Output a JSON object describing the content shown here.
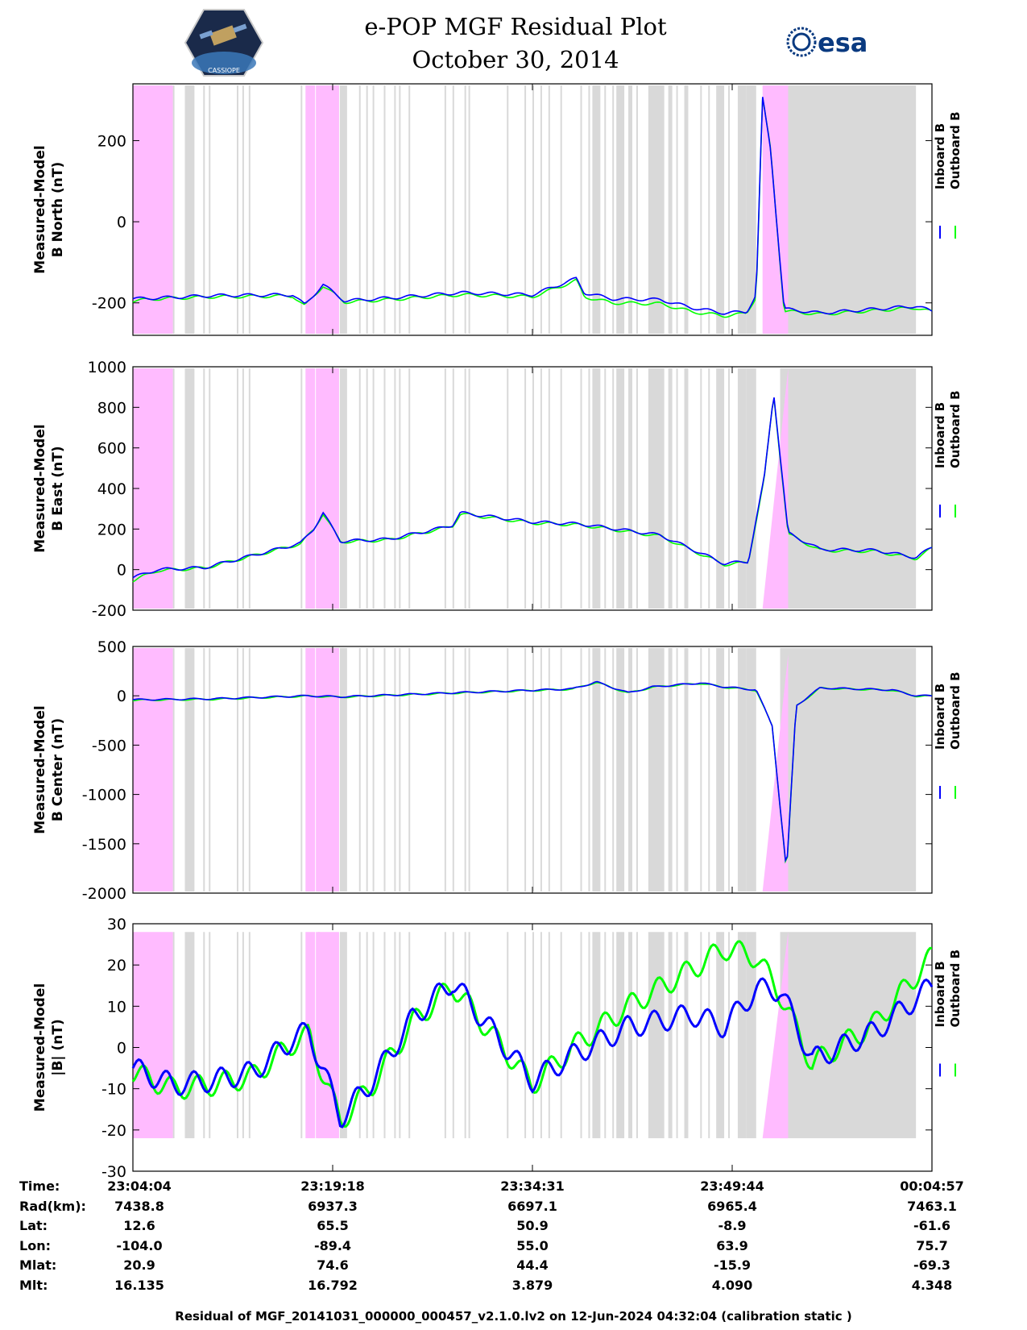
{
  "header": {
    "title_line1": "e-POP MGF Residual Plot",
    "title_line2": "October 30, 2014",
    "logo_left": "CASSIOPE",
    "logo_right": "esa"
  },
  "colors": {
    "inboard": "#0000ff",
    "outboard": "#00ff00",
    "grey_band": "#d9d9d9",
    "pink_band": "#ffbbff"
  },
  "chart_data": [
    {
      "type": "line",
      "id": "north",
      "ylabel_lines": [
        "Measured-Model",
        "B North (nT)"
      ],
      "ylim": [
        -280,
        340
      ],
      "yticks": [
        -200,
        0,
        200
      ],
      "legend": [
        "Inboard B",
        "Outboard B"
      ],
      "x": [
        0,
        0.03,
        0.1,
        0.2,
        0.215,
        0.238,
        0.265,
        0.32,
        0.41,
        0.5,
        0.555,
        0.565,
        0.6,
        0.66,
        0.7,
        0.74,
        0.768,
        0.78,
        0.788,
        0.798,
        0.815,
        0.86,
        0.98,
        1.0
      ],
      "series": [
        {
          "name": "Inboard B",
          "values": [
            -190,
            -188,
            -182,
            -180,
            -205,
            -155,
            -195,
            -188,
            -175,
            -180,
            -140,
            -175,
            -190,
            -192,
            -212,
            -225,
            -222,
            -180,
            305,
            180,
            -215,
            -225,
            -208,
            -220
          ]
        },
        {
          "name": "Outboard B",
          "values": [
            -195,
            -190,
            -185,
            -183,
            -208,
            -158,
            -198,
            -192,
            -180,
            -185,
            -145,
            -185,
            -200,
            -202,
            -222,
            -232,
            -226,
            -185,
            305,
            180,
            -220,
            -228,
            -212,
            -222
          ]
        }
      ]
    },
    {
      "type": "line",
      "id": "east",
      "ylabel_lines": [
        "Measured-Model",
        "B East (nT)"
      ],
      "ylim": [
        -200,
        1000
      ],
      "yticks": [
        -200,
        0,
        200,
        400,
        600,
        800,
        1000
      ],
      "legend": [
        "Inboard B",
        "Outboard B"
      ],
      "x": [
        0,
        0.03,
        0.09,
        0.14,
        0.21,
        0.226,
        0.238,
        0.26,
        0.32,
        0.38,
        0.4,
        0.41,
        0.5,
        0.56,
        0.66,
        0.74,
        0.77,
        0.79,
        0.802,
        0.82,
        0.86,
        0.93,
        0.98,
        1.0
      ],
      "series": [
        {
          "name": "Inboard B",
          "values": [
            -40,
            0,
            10,
            60,
            130,
            200,
            280,
            140,
            150,
            200,
            220,
            280,
            235,
            225,
            170,
            30,
            40,
            450,
            870,
            180,
            100,
            95,
            60,
            110
          ]
        },
        {
          "name": "Outboard B",
          "values": [
            -55,
            -5,
            8,
            58,
            127,
            197,
            276,
            137,
            146,
            196,
            215,
            275,
            230,
            220,
            165,
            25,
            35,
            445,
            860,
            175,
            95,
            90,
            55,
            105
          ]
        }
      ]
    },
    {
      "type": "line",
      "id": "center",
      "ylabel_lines": [
        "Measured-Model",
        "B Center (nT)"
      ],
      "ylim": [
        -2000,
        500
      ],
      "yticks": [
        -2000,
        -1500,
        -1000,
        -500,
        0,
        500
      ],
      "legend": [
        "Inboard B",
        "Outboard B"
      ],
      "x": [
        0,
        0.1,
        0.22,
        0.26,
        0.4,
        0.55,
        0.58,
        0.62,
        0.65,
        0.71,
        0.74,
        0.78,
        0.8,
        0.818,
        0.83,
        0.86,
        0.95,
        0.98,
        1.0
      ],
      "series": [
        {
          "name": "Inboard B",
          "values": [
            -40,
            -30,
            0,
            -10,
            30,
            70,
            140,
            30,
            90,
            130,
            90,
            60,
            -300,
            -1780,
            -100,
            80,
            60,
            0,
            0
          ]
        },
        {
          "name": "Outboard B",
          "values": [
            -45,
            -35,
            -3,
            -13,
            27,
            67,
            137,
            27,
            87,
            127,
            87,
            57,
            -305,
            -1785,
            -105,
            77,
            57,
            -3,
            -3
          ]
        }
      ]
    },
    {
      "type": "line",
      "id": "magnitude",
      "ylabel_lines": [
        "Measured-Model",
        "|B| (nT)"
      ],
      "ylim": [
        -30,
        30
      ],
      "yticks": [
        -30,
        -20,
        -10,
        0,
        10,
        20,
        30
      ],
      "legend": [
        "Inboard B",
        "Outboard B"
      ],
      "x": [
        0,
        0.05,
        0.1,
        0.15,
        0.2,
        0.22,
        0.26,
        0.3,
        0.35,
        0.4,
        0.5,
        0.55,
        0.62,
        0.7,
        0.74,
        0.78,
        0.81,
        0.85,
        0.93,
        1.0
      ],
      "series": [
        {
          "name": "Inboard B",
          "values": [
            -5,
            -9,
            -8,
            -6,
            2,
            4,
            -17,
            -8,
            7,
            16,
            -8,
            -2,
            5,
            8,
            5,
            14,
            14,
            -3,
            4,
            15
          ]
        },
        {
          "name": "Outboard B",
          "values": [
            -6,
            -10,
            -9,
            -7,
            1,
            3,
            -18,
            -9,
            6,
            15,
            -9,
            0,
            10,
            19,
            24,
            22,
            13,
            -4,
            6,
            22
          ]
        }
      ]
    }
  ],
  "x_ticks": {
    "labels": [
      "Time:",
      "Rad(km):",
      "Lat:",
      "Lon:",
      "Mlat:",
      "Mlt:"
    ],
    "columns": [
      {
        "time": "23:04:04",
        "rad": "7438.8",
        "lat": "12.6",
        "lon": "-104.0",
        "mlat": "20.9",
        "mlt": "16.135"
      },
      {
        "time": "23:19:18",
        "rad": "6937.3",
        "lat": "65.5",
        "lon": "-89.4",
        "mlat": "74.6",
        "mlt": "16.792"
      },
      {
        "time": "23:34:31",
        "rad": "6697.1",
        "lat": "50.9",
        "lon": "55.0",
        "mlat": "44.4",
        "mlt": "3.879"
      },
      {
        "time": "23:49:44",
        "rad": "6965.4",
        "lat": "-8.9",
        "lon": "63.9",
        "mlat": "-15.9",
        "mlt": "4.090"
      },
      {
        "time": "00:04:57",
        "rad": "7463.1",
        "lat": "-61.6",
        "lon": "75.7",
        "mlat": "-69.3",
        "mlt": "4.348"
      }
    ]
  },
  "footer": "Residual of MGF_20141031_000000_000457_v2.1.0.lv2 on 12-Jun-2024 04:32:04 (calibration static )"
}
